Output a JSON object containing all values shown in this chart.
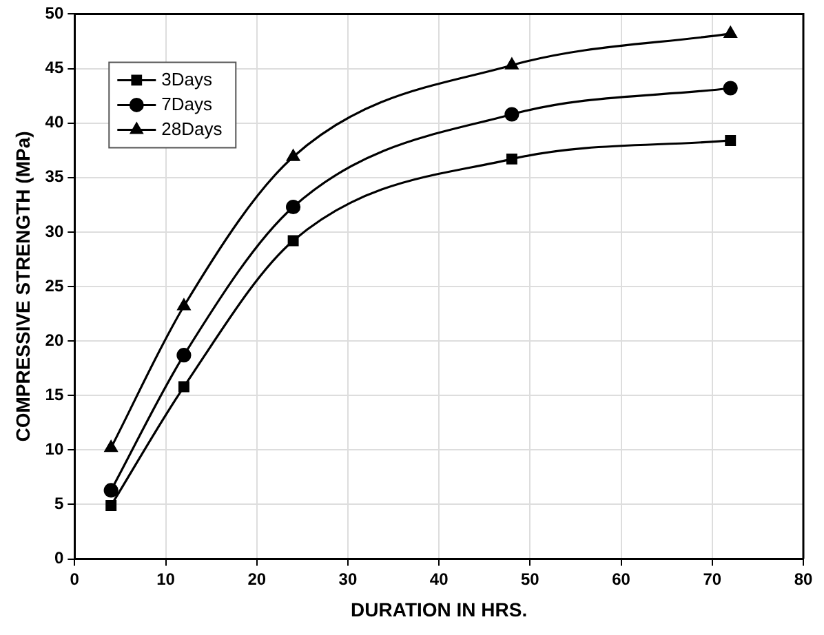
{
  "chart_data": {
    "type": "line",
    "xlabel": "DURATION IN HRS.",
    "ylabel": "COMPRESSIVE STRENGTH (MPa)",
    "x": [
      4,
      12,
      24,
      48,
      72
    ],
    "series": [
      {
        "name": "3Days",
        "color": "#000000",
        "marker": "square",
        "values": [
          4.9,
          15.8,
          29.2,
          36.7,
          38.4
        ]
      },
      {
        "name": "7Days",
        "color": "#000000",
        "marker": "circle",
        "values": [
          6.3,
          18.7,
          32.3,
          40.8,
          43.2
        ]
      },
      {
        "name": "28Days",
        "color": "#000000",
        "marker": "triangle",
        "values": [
          10.2,
          23.2,
          36.9,
          45.3,
          48.2
        ]
      }
    ],
    "xlim": [
      0,
      80
    ],
    "xticks": [
      0,
      10,
      20,
      30,
      40,
      50,
      60,
      70,
      80
    ],
    "ylim": [
      0,
      50
    ],
    "yticks": [
      0,
      5,
      10,
      15,
      20,
      25,
      30,
      35,
      40,
      45,
      50
    ],
    "grid": true,
    "legend": "top left",
    "line_style": "solid"
  }
}
